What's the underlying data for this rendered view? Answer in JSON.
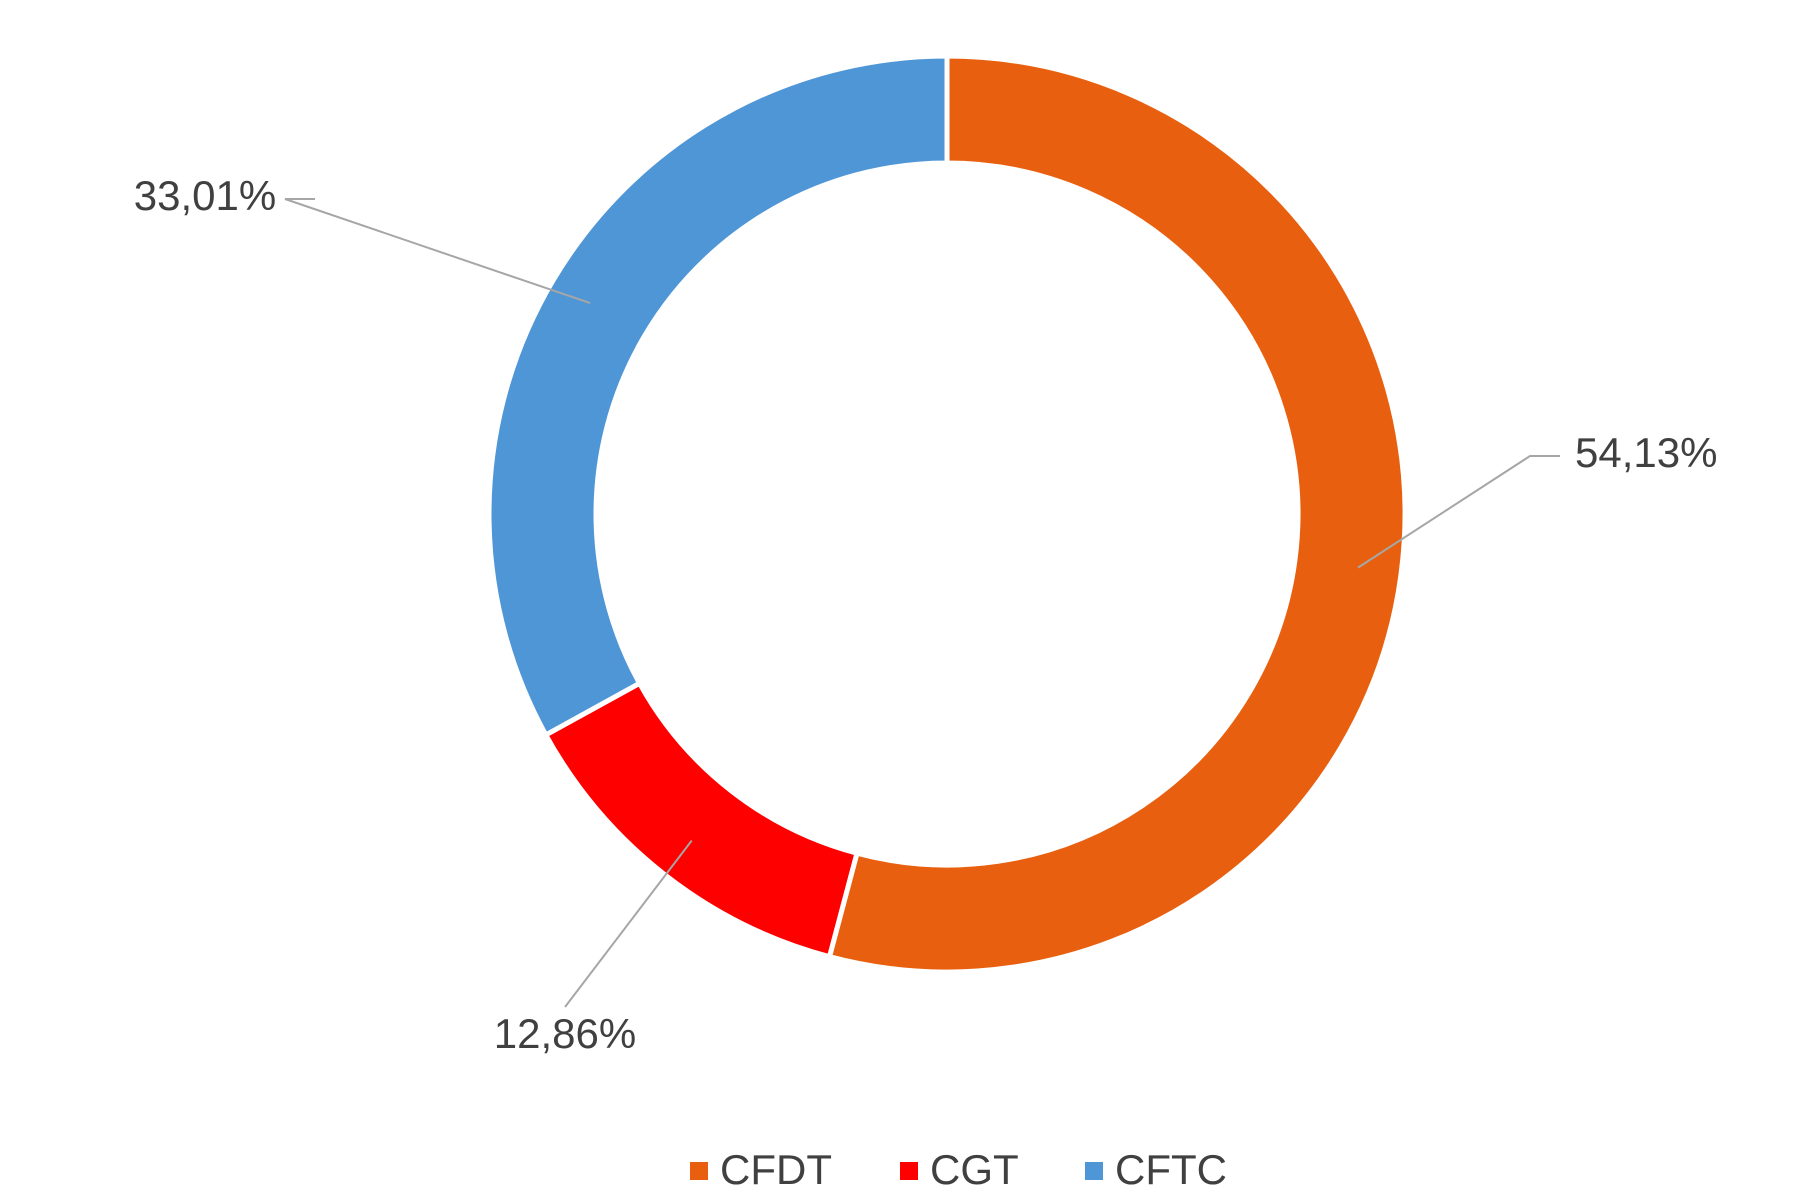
{
  "chart_data": {
    "type": "donut",
    "categories": [
      "CFDT",
      "CGT",
      "CFTC"
    ],
    "values": [
      54.13,
      12.86,
      33.01
    ],
    "value_labels": [
      "54,13%",
      "12,86%",
      "33,01%"
    ],
    "colors": [
      "#e8600f",
      "#ff0000",
      "#4f96d6"
    ],
    "legend": "bottom"
  }
}
